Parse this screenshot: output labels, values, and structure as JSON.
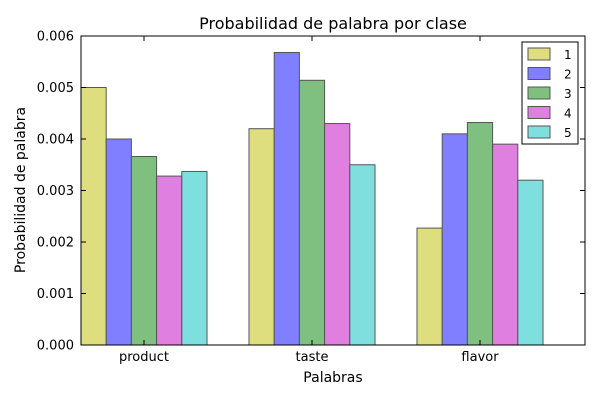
{
  "chart_data": {
    "type": "bar",
    "title": "Probabilidad de palabra por clase",
    "xlabel": "Palabras",
    "ylabel": "Probabilidad de palabra",
    "categories": [
      "product",
      "taste",
      "flavor"
    ],
    "ylim": [
      0,
      0.006
    ],
    "yticks": [
      "0.000",
      "0.001",
      "0.002",
      "0.003",
      "0.004",
      "0.005",
      "0.006"
    ],
    "legend_position": "top-right",
    "grid": false,
    "series": [
      {
        "name": "1",
        "color": "#dede7e",
        "values": [
          0.005,
          0.0042,
          0.00227
        ]
      },
      {
        "name": "2",
        "color": "#7f7fff",
        "values": [
          0.004,
          0.00568,
          0.0041
        ]
      },
      {
        "name": "3",
        "color": "#7fbf7f",
        "values": [
          0.00366,
          0.00514,
          0.00432
        ]
      },
      {
        "name": "4",
        "color": "#df7fdf",
        "values": [
          0.00328,
          0.0043,
          0.0039
        ]
      },
      {
        "name": "5",
        "color": "#7fdfdf",
        "values": [
          0.00337,
          0.0035,
          0.0032
        ]
      }
    ]
  }
}
